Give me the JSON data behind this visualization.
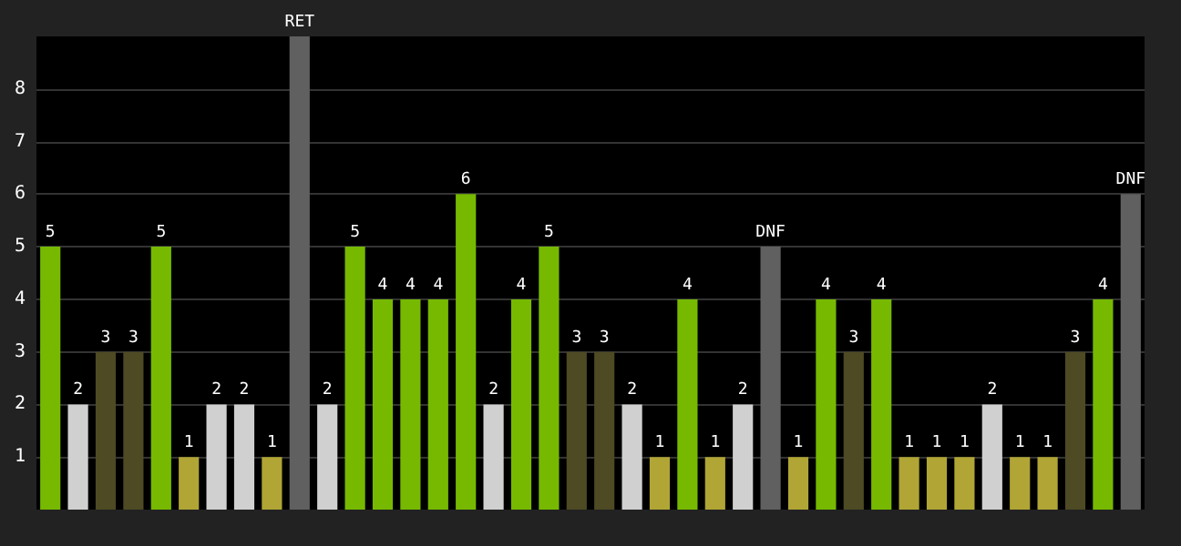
{
  "chart_data": {
    "type": "bar",
    "categories": [
      null,
      null,
      null,
      null,
      null,
      null,
      null,
      null,
      null,
      null,
      null,
      null,
      null,
      null,
      null,
      null,
      null,
      null,
      null,
      null,
      null,
      null,
      null,
      null,
      null,
      null,
      null,
      null,
      null,
      null,
      null,
      null,
      null,
      null,
      null,
      null,
      null,
      null,
      null,
      null
    ],
    "values": [
      5,
      2,
      3,
      3,
      5,
      1,
      2,
      2,
      1,
      9,
      2,
      5,
      4,
      4,
      4,
      6,
      2,
      4,
      5,
      3,
      3,
      2,
      1,
      4,
      1,
      2,
      5,
      1,
      4,
      3,
      4,
      1,
      1,
      1,
      2,
      1,
      1,
      3,
      4,
      6
    ],
    "value_labels": [
      "5",
      "2",
      "3",
      "3",
      "5",
      "1",
      "2",
      "2",
      "1",
      "RET",
      "2",
      "5",
      "4",
      "4",
      "4",
      "6",
      "2",
      "4",
      "5",
      "3",
      "3",
      "2",
      "1",
      "4",
      "1",
      "2",
      "DNF",
      "1",
      "4",
      "3",
      "4",
      "1",
      "1",
      "1",
      "2",
      "1",
      "1",
      "3",
      "4",
      "DNF"
    ],
    "colors": [
      "#76b900",
      "#d0d0d0",
      "#4d4a24",
      "#4d4a24",
      "#76b900",
      "#b0a535",
      "#d0d0d0",
      "#d0d0d0",
      "#b0a535",
      "#606060",
      "#d0d0d0",
      "#76b900",
      "#76b900",
      "#76b900",
      "#76b900",
      "#76b900",
      "#d0d0d0",
      "#76b900",
      "#76b900",
      "#4d4a24",
      "#4d4a24",
      "#d0d0d0",
      "#b0a535",
      "#76b900",
      "#b0a535",
      "#d0d0d0",
      "#606060",
      "#b0a535",
      "#76b900",
      "#4d4a24",
      "#76b900",
      "#b0a535",
      "#b0a535",
      "#b0a535",
      "#d0d0d0",
      "#b0a535",
      "#b0a535",
      "#4d4a24",
      "#76b900",
      "#606060"
    ],
    "ylim": [
      0,
      9
    ],
    "yticks": [
      1,
      2,
      3,
      4,
      5,
      6,
      7,
      8
    ],
    "grid": "y"
  }
}
